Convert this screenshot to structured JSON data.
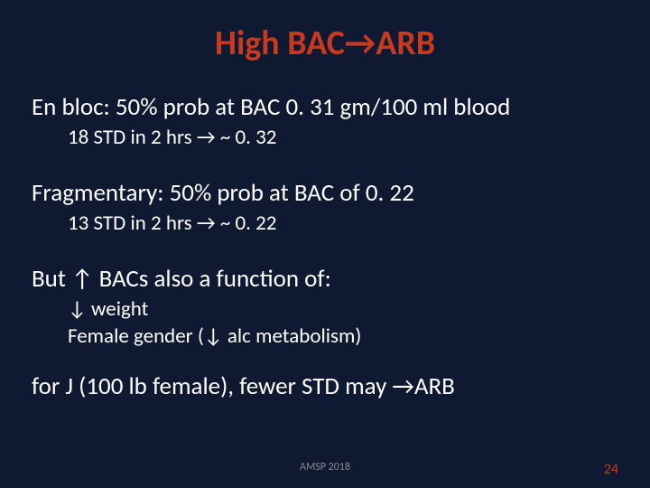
{
  "slide": {
    "background_color": "#0f1932",
    "title_color": "#c73a20",
    "text_color": "#ffffff",
    "footer_muted_color": "#8a8a8a",
    "page_number_color": "#c73a20",
    "title_fontsize": 38,
    "main_text_fontsize": 27,
    "sub_text_fontsize": 23
  },
  "title": "High BAC→ARB",
  "blocks": [
    {
      "main": "En bloc: 50% prob at BAC 0. 31 gm/100 ml blood",
      "subs": [
        "18 STD in 2 hrs → ~ 0. 32"
      ]
    },
    {
      "main": "Fragmentary: 50% prob at BAC of 0. 22",
      "subs": [
        "13 STD in 2 hrs → ~ 0. 22"
      ]
    },
    {
      "main": "But ↑ BACs also a function of:",
      "subs": [
        "↓ weight",
        "Female gender (↓ alc metabolism)"
      ]
    },
    {
      "main": "for J (100 lb female), fewer STD may →ARB",
      "subs": []
    }
  ],
  "footer": {
    "center": "AMSP 2018",
    "page": "24"
  }
}
